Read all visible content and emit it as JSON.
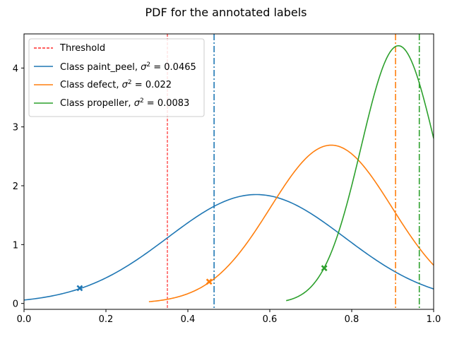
{
  "chart_data": {
    "type": "line",
    "title": "PDF for the annotated labels",
    "xlabel": "",
    "ylabel": "",
    "xlim": [
      0.0,
      1.0
    ],
    "ylim": [
      -0.1,
      4.58
    ],
    "xticks": [
      "0.0",
      "0.2",
      "0.4",
      "0.6",
      "0.8",
      "1.0"
    ],
    "yticks": [
      "0",
      "1",
      "2",
      "3",
      "4"
    ],
    "legend_position": "top-left",
    "threshold": {
      "label": "Threshold",
      "x": 0.35,
      "color": "#ff0000"
    },
    "series": [
      {
        "name": "Class paint_peel, σ² = 0.0465",
        "label_prefix": "Class paint_peel, ",
        "label_var": "0.0465",
        "color": "#1f77b4",
        "mean": 0.567,
        "variance": 0.0465,
        "x_start": 0.0,
        "x_end": 1.0,
        "marker": {
          "x": 0.136,
          "y": 0.26
        },
        "vline_x": 0.464
      },
      {
        "name": "Class defect, σ² = 0.022",
        "label_prefix": "Class defect, ",
        "label_var": "0.022",
        "color": "#ff7f0e",
        "mean": 0.75,
        "variance": 0.022,
        "x_start": 0.305,
        "x_end": 1.0,
        "marker": {
          "x": 0.452,
          "y": 0.37
        },
        "vline_x": 0.907
      },
      {
        "name": "Class propeller, σ² = 0.0083",
        "label_prefix": "Class propeller, ",
        "label_var": "0.0083",
        "color": "#2ca02c",
        "mean": 0.914,
        "variance": 0.0083,
        "x_start": 0.64,
        "x_end": 1.0,
        "marker": {
          "x": 0.733,
          "y": 0.6
        },
        "vline_x": 0.965
      }
    ]
  }
}
